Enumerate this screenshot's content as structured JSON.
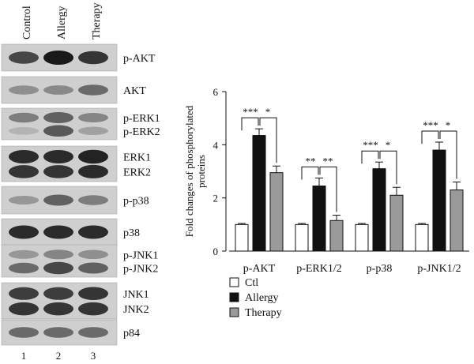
{
  "lanes": {
    "headers": [
      "Control",
      "Allergy",
      "Therapy"
    ],
    "numbers": [
      "1",
      "2",
      "3"
    ]
  },
  "blots": [
    {
      "labels": [
        "p-AKT"
      ],
      "bands": [
        {
          "intensities": [
            0.75,
            1.0,
            0.85
          ]
        }
      ]
    },
    {
      "labels": [
        "AKT"
      ],
      "bands": [
        {
          "intensities": [
            0.35,
            0.38,
            0.55
          ]
        }
      ]
    },
    {
      "labels": [
        "p-ERK1",
        "p-ERK2"
      ],
      "bands": [
        {
          "intensities": [
            0.45,
            0.6,
            0.4
          ]
        },
        {
          "intensities": [
            0.15,
            0.65,
            0.25
          ]
        }
      ]
    },
    {
      "labels": [
        "ERK1",
        "ERK2"
      ],
      "bands": [
        {
          "intensities": [
            0.9,
            0.9,
            0.95
          ]
        },
        {
          "intensities": [
            0.85,
            0.85,
            0.9
          ]
        }
      ]
    },
    {
      "labels": [
        "p-p38"
      ],
      "bands": [
        {
          "intensities": [
            0.3,
            0.6,
            0.45
          ]
        }
      ]
    },
    {
      "labels": [
        "p38"
      ],
      "bands": [
        {
          "intensities": [
            0.9,
            0.9,
            0.9
          ]
        }
      ]
    },
    {
      "labels": [
        "p-JNK1",
        "p-JNK2"
      ],
      "bands": [
        {
          "intensities": [
            0.3,
            0.4,
            0.35
          ]
        },
        {
          "intensities": [
            0.55,
            0.75,
            0.6
          ]
        }
      ]
    },
    {
      "labels": [
        "JNK1",
        "JNK2"
      ],
      "bands": [
        {
          "intensities": [
            0.8,
            0.8,
            0.85
          ]
        },
        {
          "intensities": [
            0.85,
            0.85,
            0.85
          ]
        }
      ]
    },
    {
      "labels": [
        "p84"
      ],
      "bands": [
        {
          "intensities": [
            0.55,
            0.55,
            0.55
          ]
        }
      ]
    }
  ],
  "chart_data": {
    "type": "bar",
    "ylabel": "Fold changes of phosphorylated proteins",
    "xlabel": "",
    "ylim": [
      0,
      6
    ],
    "yticks": [
      0,
      2,
      4,
      6
    ],
    "categories": [
      "p-AKT",
      "p-ERK1/2",
      "p-p38",
      "p-JNK1/2"
    ],
    "series": [
      {
        "name": "Ctl",
        "color": "#ffffff",
        "values": [
          1.0,
          1.0,
          1.0,
          1.0
        ],
        "errors": [
          0.04,
          0.04,
          0.04,
          0.04
        ]
      },
      {
        "name": "Allergy",
        "color": "#111111",
        "values": [
          4.35,
          2.45,
          3.1,
          3.8
        ],
        "errors": [
          0.25,
          0.3,
          0.25,
          0.3
        ]
      },
      {
        "name": "Therapy",
        "color": "#9a9a9a",
        "values": [
          2.95,
          1.15,
          2.1,
          2.3
        ],
        "errors": [
          0.25,
          0.2,
          0.3,
          0.3
        ]
      }
    ],
    "significance": [
      {
        "category": "p-AKT",
        "labels": [
          "***",
          "*"
        ]
      },
      {
        "category": "p-ERK1/2",
        "labels": [
          "**",
          "**"
        ]
      },
      {
        "category": "p-p38",
        "labels": [
          "***",
          "*"
        ]
      },
      {
        "category": "p-JNK1/2",
        "labels": [
          "***",
          "*"
        ]
      }
    ],
    "legend": [
      "Ctl",
      "Allergy",
      "Therapy"
    ],
    "legend_position": "bottom-left",
    "grid": false
  }
}
